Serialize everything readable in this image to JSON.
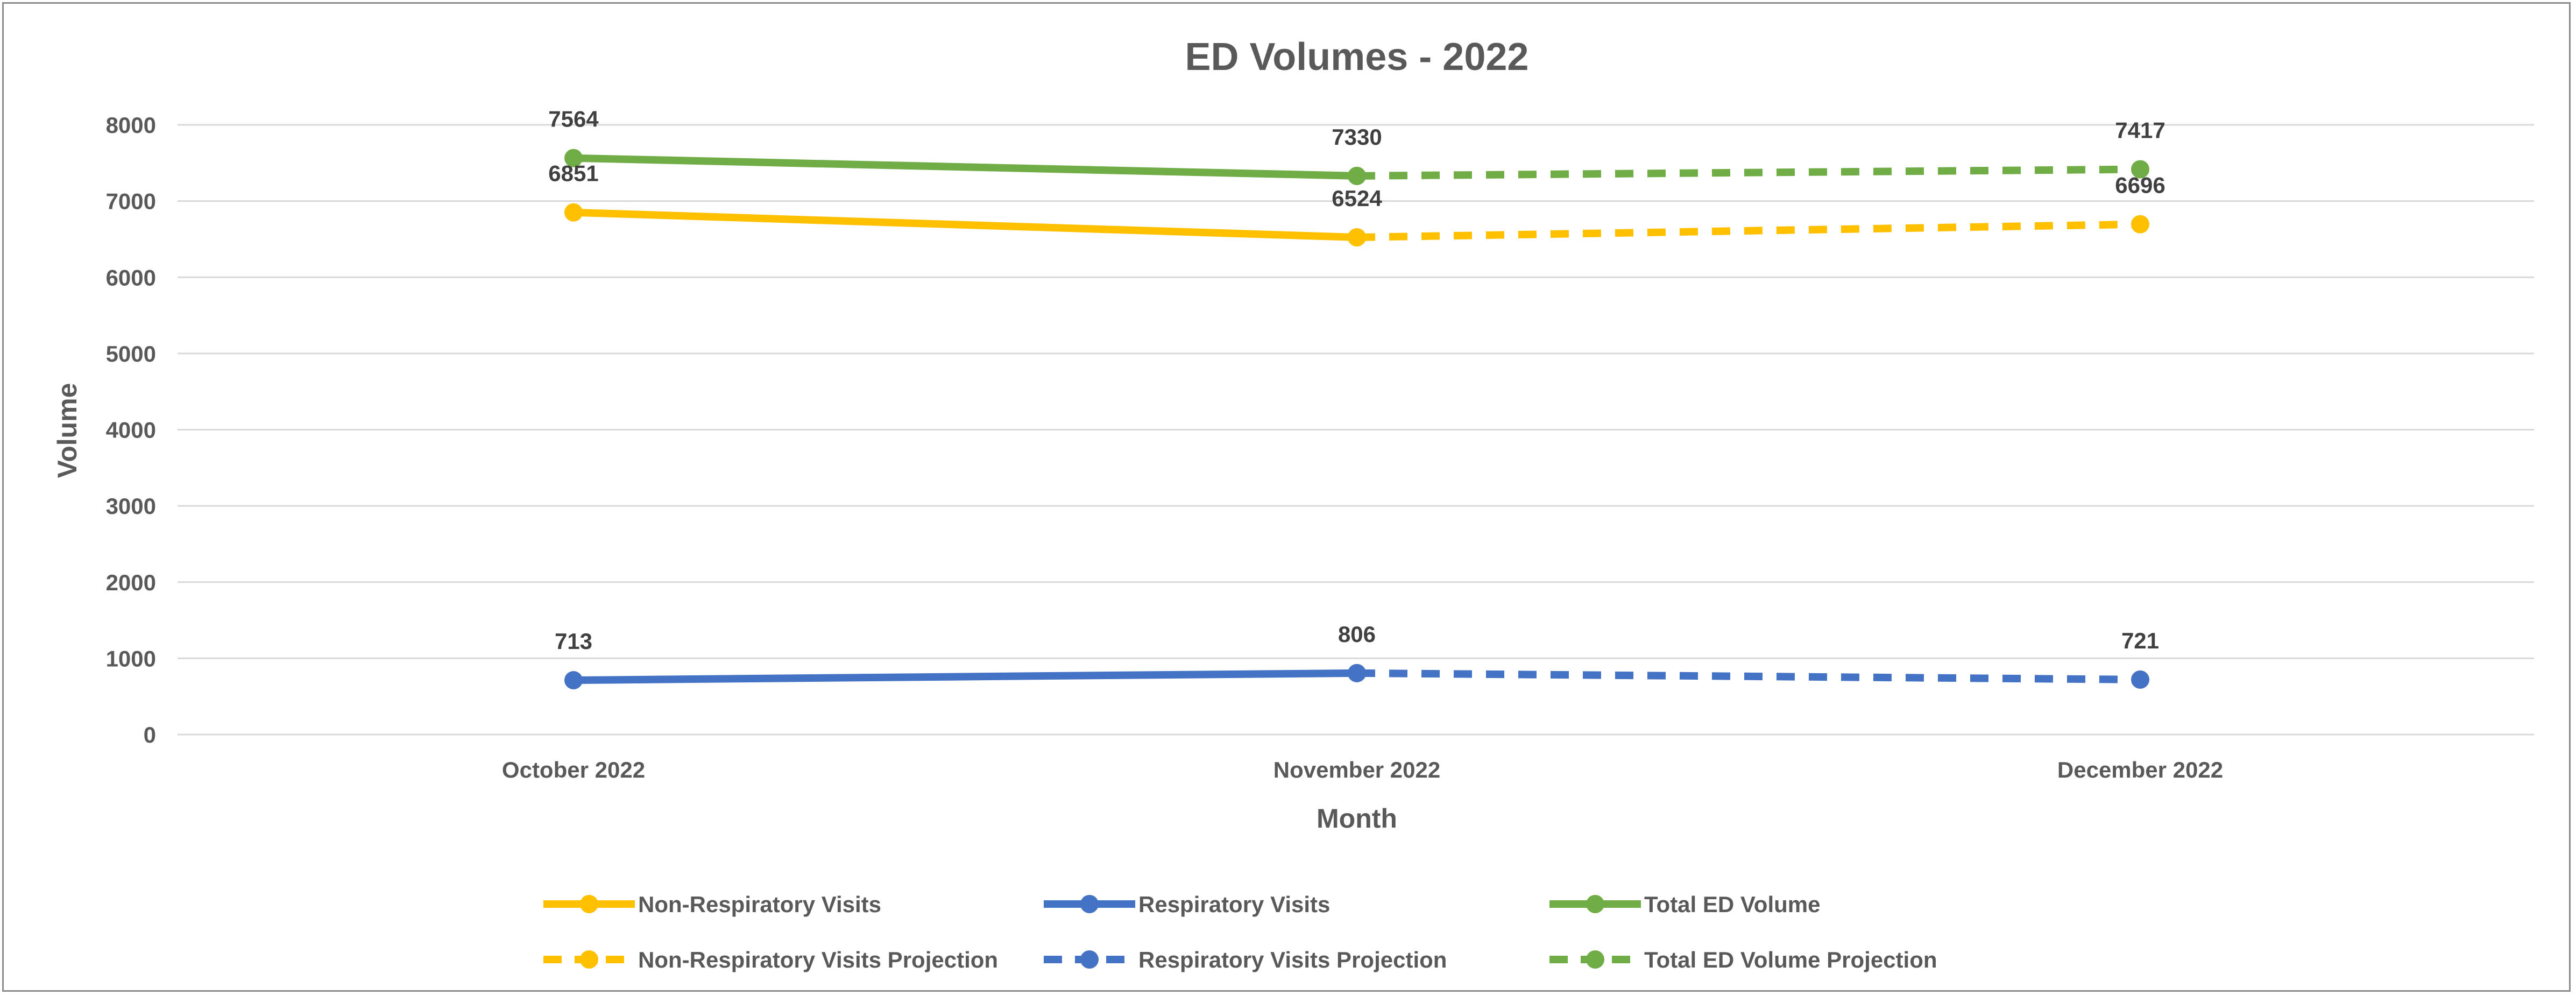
{
  "chart_data": {
    "type": "line",
    "title": "ED Volumes - 2022",
    "xlabel": "Month",
    "ylabel": "Volume",
    "categories": [
      "October 2022",
      "November 2022",
      "December 2022"
    ],
    "ylim": [
      0,
      8000
    ],
    "yticks": [
      0,
      1000,
      2000,
      3000,
      4000,
      5000,
      6000,
      7000,
      8000
    ],
    "grid": true,
    "legend_position": "bottom",
    "series": [
      {
        "name": "Non-Respiratory Visits",
        "values": [
          6851,
          6524,
          null
        ],
        "color": "#ffc000",
        "dashed": false
      },
      {
        "name": "Respiratory Visits",
        "values": [
          713,
          806,
          null
        ],
        "color": "#4472c4",
        "dashed": false
      },
      {
        "name": "Total ED Volume",
        "values": [
          7564,
          7330,
          null
        ],
        "color": "#70ad47",
        "dashed": false
      },
      {
        "name": "Non-Respiratory Visits Projection",
        "values": [
          null,
          6524,
          6696
        ],
        "color": "#ffc000",
        "dashed": true
      },
      {
        "name": "Respiratory Visits Projection",
        "values": [
          null,
          806,
          721
        ],
        "color": "#4472c4",
        "dashed": true
      },
      {
        "name": "Total ED Volume Projection",
        "values": [
          null,
          7330,
          7417
        ],
        "color": "#70ad47",
        "dashed": true
      }
    ],
    "data_labels": [
      {
        "series": "Total ED Volume",
        "index": 0,
        "text": "7564"
      },
      {
        "series": "Total ED Volume",
        "index": 1,
        "text": "7330"
      },
      {
        "series": "Total ED Volume Projection",
        "index": 2,
        "text": "7417"
      },
      {
        "series": "Non-Respiratory Visits",
        "index": 0,
        "text": "6851"
      },
      {
        "series": "Non-Respiratory Visits",
        "index": 1,
        "text": "6524"
      },
      {
        "series": "Non-Respiratory Visits Projection",
        "index": 2,
        "text": "6696"
      },
      {
        "series": "Respiratory Visits",
        "index": 0,
        "text": "713"
      },
      {
        "series": "Respiratory Visits",
        "index": 1,
        "text": "806"
      },
      {
        "series": "Respiratory Visits Projection",
        "index": 2,
        "text": "721"
      }
    ]
  }
}
